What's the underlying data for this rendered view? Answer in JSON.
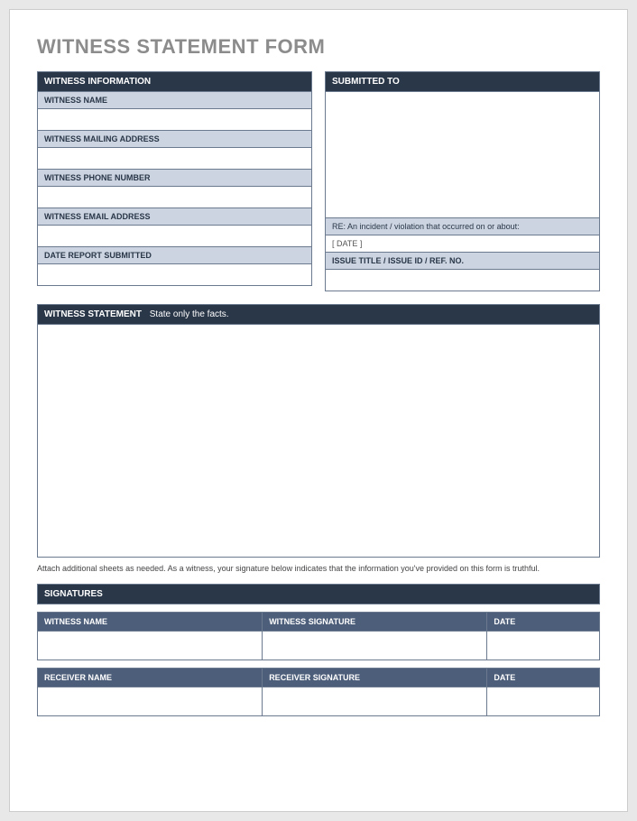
{
  "title": "WITNESS STATEMENT FORM",
  "left_header": "WITNESS INFORMATION",
  "right_header": "SUBMITTED TO",
  "witness_info": {
    "name_label": "WITNESS NAME",
    "mailing_label": "WITNESS MAILING ADDRESS",
    "phone_label": "WITNESS PHONE NUMBER",
    "email_label": "WITNESS EMAIL ADDRESS",
    "date_submitted_label": "DATE REPORT SUBMITTED"
  },
  "submitted_to": {
    "re_label": "RE: An incident / violation that occurred on or about:",
    "date_placeholder": "[ DATE ]",
    "issue_label": "ISSUE TITLE / ISSUE ID / REF. NO."
  },
  "statement": {
    "header": "WITNESS STATEMENT",
    "header_sub": "State only the facts.",
    "note": "Attach additional sheets as needed.  As a witness, your signature below indicates that the information you've provided on this form is truthful."
  },
  "signatures": {
    "header": "SIGNATURES",
    "witness_name": "WITNESS NAME",
    "witness_sig": "WITNESS SIGNATURE",
    "witness_date": "DATE",
    "receiver_name": "RECEIVER NAME",
    "receiver_sig": "RECEIVER SIGNATURE",
    "receiver_date": "DATE"
  },
  "colors": {
    "dark_header": "#2a3749",
    "label_bg": "#cbd4e0",
    "border": "#6b7a8f",
    "sig_header": "#4d5e7a",
    "title_gray": "#8c8c8c",
    "page_bg": "#ffffff",
    "body_bg": "#e8e8e8"
  }
}
